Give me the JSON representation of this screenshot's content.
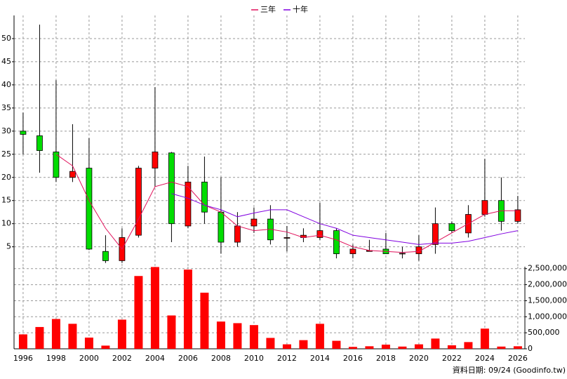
{
  "chart_data": [
    {
      "type": "candlestick",
      "x": [
        1996,
        1997,
        1998,
        1999,
        2000,
        2001,
        2002,
        2003,
        2004,
        2005,
        2006,
        2007,
        2008,
        2009,
        2010,
        2011,
        2012,
        2013,
        2014,
        2015,
        2016,
        2017,
        2018,
        2019,
        2020,
        2021,
        2022,
        2023,
        2024,
        2025,
        2026
      ],
      "open": [
        30,
        29,
        25.5,
        20,
        22,
        4,
        2,
        7.5,
        22,
        25.3,
        9.5,
        19,
        12.5,
        6,
        9.5,
        11,
        6.9,
        7,
        7,
        8.5,
        3.5,
        4,
        4.5,
        3.5,
        3.5,
        5.5,
        10,
        8,
        12,
        15,
        10.5
      ],
      "high": [
        34,
        53,
        41,
        31.5,
        28.5,
        7.5,
        9,
        22.5,
        39.5,
        25.5,
        22.5,
        24.5,
        20,
        12.5,
        13.5,
        14,
        9.5,
        9,
        14.5,
        9,
        5.5,
        6.5,
        8,
        5,
        7.5,
        13.5,
        10.5,
        14,
        24,
        20,
        16
      ],
      "low": [
        25,
        21,
        19,
        19,
        4.3,
        1.5,
        1.5,
        7,
        18,
        6,
        9,
        10,
        3.5,
        5,
        8,
        5.5,
        4,
        6,
        6.5,
        2.5,
        2.5,
        4,
        3.5,
        2.5,
        2,
        3.5,
        8,
        7,
        11.5,
        8.5,
        10
      ],
      "close": [
        29.3,
        25.8,
        20,
        21.3,
        4.5,
        2,
        7,
        22,
        25.5,
        10,
        19,
        12.5,
        6,
        9.5,
        11,
        6.5,
        7,
        7.5,
        8.5,
        3.5,
        4.5,
        4.2,
        3.5,
        3.6,
        5,
        10,
        8.5,
        12,
        15,
        10.5,
        13
      ],
      "up_color": "#ff0000",
      "down_color": "#00dd00",
      "series": [
        {
          "name": "三年",
          "color": "#e0105a",
          "values": [
            null,
            null,
            25,
            22.5,
            15,
            9,
            4.5,
            11,
            18,
            19,
            18,
            14,
            12.5,
            9.5,
            8.5,
            8.8,
            8.2,
            7,
            7.5,
            6.5,
            5,
            4.2,
            4,
            3.8,
            4,
            6,
            8,
            10,
            12,
            12.8,
            12.8
          ]
        },
        {
          "name": "十年",
          "color": "#8000e0",
          "values": [
            null,
            null,
            null,
            null,
            null,
            null,
            null,
            null,
            null,
            16.5,
            15.5,
            14,
            13,
            11.5,
            12.3,
            13,
            13,
            11.5,
            10,
            9,
            7.5,
            7,
            6.5,
            6,
            5.5,
            5.8,
            5.8,
            6.2,
            7,
            7.8,
            8.5
          ]
        }
      ],
      "xlim": [
        1995.45,
        2026.43
      ],
      "ylim": [
        0.7,
        55
      ],
      "yticks": [
        5,
        10,
        15,
        20,
        25,
        30,
        35,
        40,
        45,
        50
      ],
      "grid": true,
      "legend": "top"
    },
    {
      "type": "bar",
      "x": [
        1996,
        1997,
        1998,
        1999,
        2000,
        2001,
        2002,
        2003,
        2004,
        2005,
        2006,
        2007,
        2008,
        2009,
        2010,
        2011,
        2012,
        2013,
        2014,
        2015,
        2016,
        2017,
        2018,
        2019,
        2020,
        2021,
        2022,
        2023,
        2024,
        2025,
        2026
      ],
      "values": [
        450000,
        680000,
        930000,
        780000,
        350000,
        100000,
        910000,
        2270000,
        2550000,
        1040000,
        2470000,
        1750000,
        850000,
        800000,
        740000,
        340000,
        140000,
        270000,
        780000,
        250000,
        60000,
        80000,
        130000,
        70000,
        140000,
        320000,
        110000,
        210000,
        630000,
        70000,
        80000
      ],
      "color": "#ff0000",
      "xlim": [
        1995.45,
        2026.43
      ],
      "ylim": [
        0,
        2560000
      ],
      "xticks": [
        1996,
        1998,
        2000,
        2002,
        2004,
        2006,
        2008,
        2010,
        2012,
        2014,
        2016,
        2018,
        2020,
        2022,
        2024,
        2026
      ],
      "yticks": [
        0,
        {
          "value": 500000,
          "label": "500,000"
        },
        {
          "value": 1000000,
          "label": "1,000,000"
        },
        {
          "value": 1500000,
          "label": "1,500,000"
        },
        {
          "value": 2000000,
          "label": "2,000,000"
        },
        {
          "value": 2500000,
          "label": "2,500,000"
        }
      ],
      "grid": true,
      "footnote": "資料日期: 09/24 (Goodinfo.tw)"
    }
  ]
}
